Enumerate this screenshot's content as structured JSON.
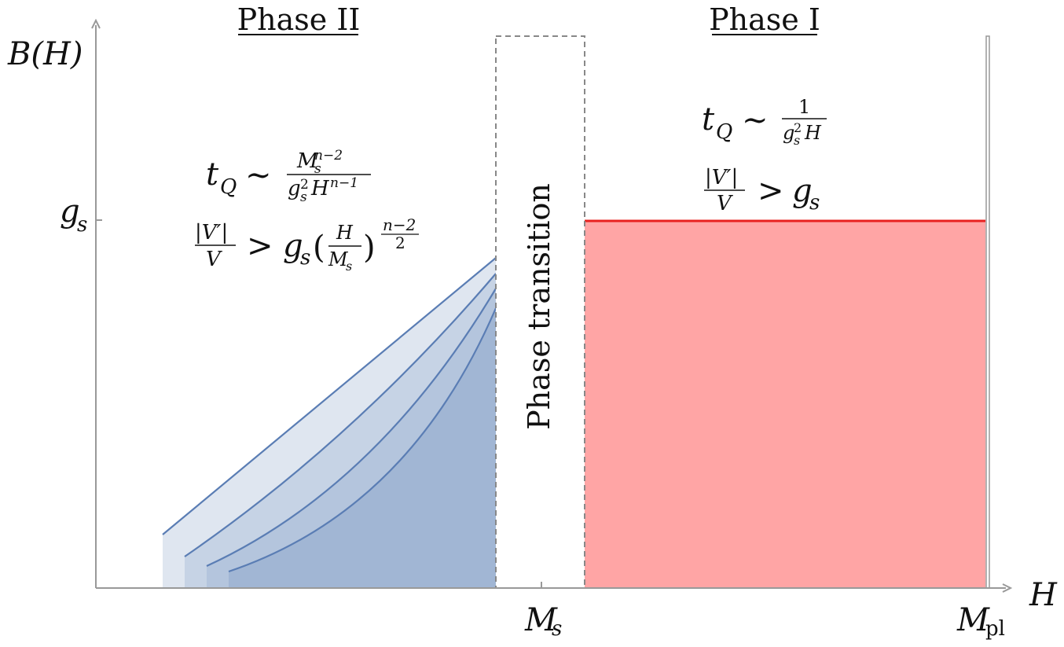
{
  "axes": {
    "y_label": "B(H)",
    "x_label": "H",
    "y_tick": {
      "base": "g",
      "sub": "s"
    },
    "x_ticks": [
      {
        "base": "M",
        "sub": "s"
      },
      {
        "base": "M",
        "sub": "pl"
      }
    ]
  },
  "phase_ii": {
    "title": "Phase II",
    "time": {
      "lhs": "t",
      "lhs_sub": "Q",
      "rel": "∼",
      "num": "M",
      "num_sub": "s",
      "num_sup": "n−2",
      "den": "g",
      "den_sub": "s",
      "den_sup": "2",
      "den2": "H",
      "den2_sup": "n−1"
    },
    "bound": {
      "num": "|V′|",
      "den": "V",
      "rel": ">",
      "g": "g",
      "g_sub": "s",
      "open": "(",
      "inner_num": "H",
      "inner_den": "M",
      "inner_den_sub": "s",
      "close": ")",
      "exp_num": "n−2",
      "exp_den": "2"
    }
  },
  "phase_transition": "Phase transition",
  "phase_i": {
    "title": "Phase I",
    "time": {
      "lhs": "t",
      "lhs_sub": "Q",
      "rel": "∼",
      "num": "1",
      "den": "g",
      "den_sub": "s",
      "den_sup": "2",
      "den2": "H"
    },
    "bound": {
      "num": "|V′|",
      "den": "V",
      "rel": ">",
      "g": "g",
      "g_sub": "s"
    }
  }
}
